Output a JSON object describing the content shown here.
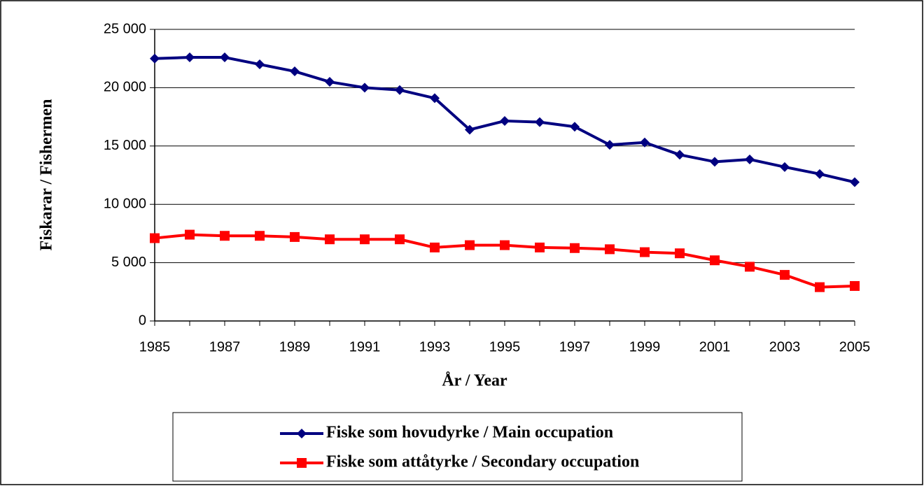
{
  "chart_data": {
    "type": "line",
    "x_label": "År / Year",
    "y_label": "Fiskarar / Fishermen",
    "x": [
      1985,
      1986,
      1987,
      1988,
      1989,
      1990,
      1991,
      1992,
      1993,
      1994,
      1995,
      1996,
      1997,
      1998,
      1999,
      2000,
      2001,
      2002,
      2003,
      2004,
      2005
    ],
    "series": [
      {
        "name": "Fiske som hovudyrke / Main occupation",
        "color": "#000080",
        "marker": "diamond",
        "values": [
          22500,
          22600,
          22600,
          22000,
          21400,
          20500,
          20000,
          19800,
          19100,
          16400,
          17150,
          17050,
          16650,
          15100,
          15300,
          14250,
          13650,
          13850,
          13200,
          12600,
          11900
        ]
      },
      {
        "name": "Fiske som attåtyrke / Secondary occupation",
        "color": "#ff0000",
        "marker": "square",
        "values": [
          7100,
          7400,
          7300,
          7300,
          7200,
          7000,
          7000,
          7000,
          6300,
          6500,
          6500,
          6300,
          6250,
          6150,
          5900,
          5800,
          5200,
          4650,
          3950,
          2900,
          3000
        ]
      }
    ],
    "xlim": [
      1985,
      2005
    ],
    "xticks": [
      1985,
      1987,
      1989,
      1991,
      1993,
      1995,
      1997,
      1999,
      2001,
      2003,
      2005
    ],
    "ylim": [
      0,
      25000
    ],
    "yticks": [
      0,
      {
        "value": 5000,
        "label": "5 000"
      },
      {
        "value": 10000,
        "label": "10 000"
      },
      {
        "value": 15000,
        "label": "15 000"
      },
      {
        "value": 20000,
        "label": "20 000"
      },
      {
        "value": 25000,
        "label": "25 000"
      }
    ],
    "grid": true,
    "legend": "bottom"
  }
}
